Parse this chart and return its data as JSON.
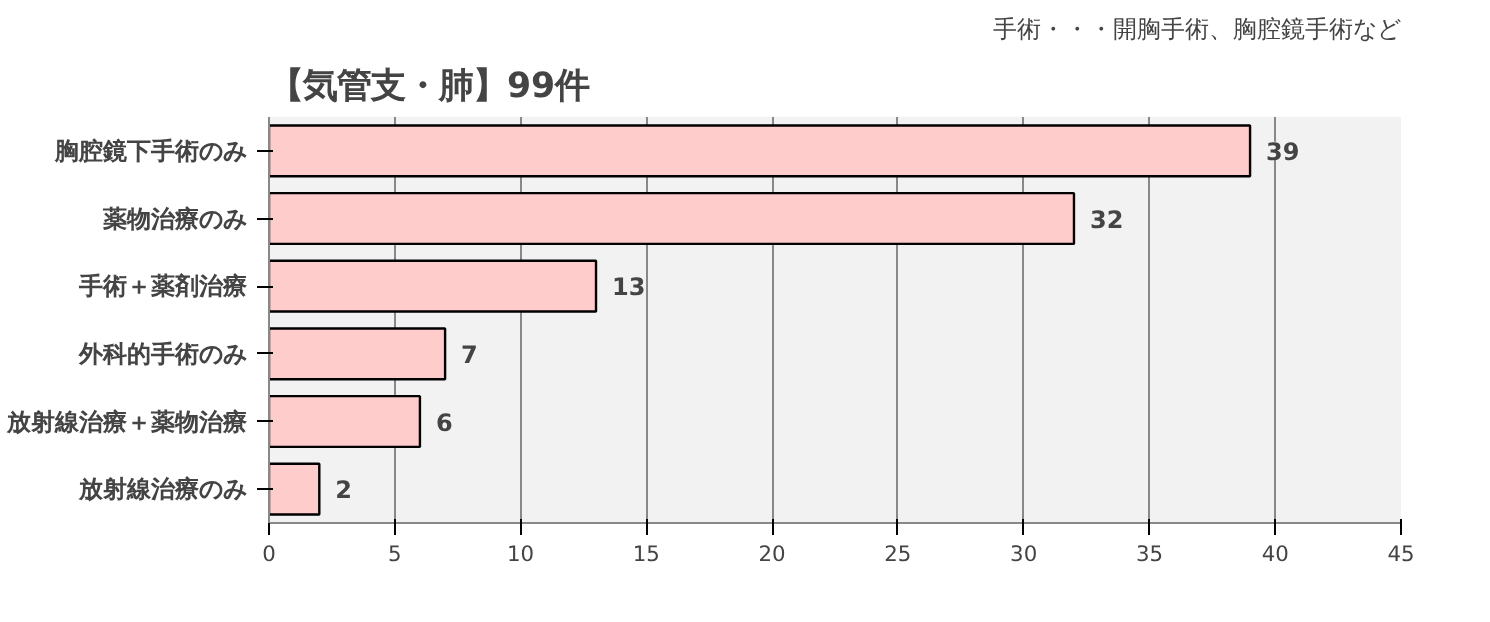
{
  "chart_data": {
    "type": "bar",
    "orientation": "horizontal",
    "title": "【気管支・肺】99件",
    "annotations": [
      "手術・・・開胸手術、胸腔鏡手術など"
    ],
    "categories": [
      "胸腔鏡下手術のみ",
      "薬物治療のみ",
      "手術＋薬剤治療",
      "外科的手術のみ",
      "放射線治療＋薬物治療",
      "放射線治療のみ"
    ],
    "values": [
      39,
      32,
      13,
      7,
      6,
      2
    ],
    "color": "#ffcccc",
    "xlim": [
      0,
      45
    ],
    "xticks": [
      0,
      5,
      10,
      15,
      20,
      25,
      30,
      35,
      40,
      45
    ],
    "grid": "x",
    "data_labels": true
  }
}
